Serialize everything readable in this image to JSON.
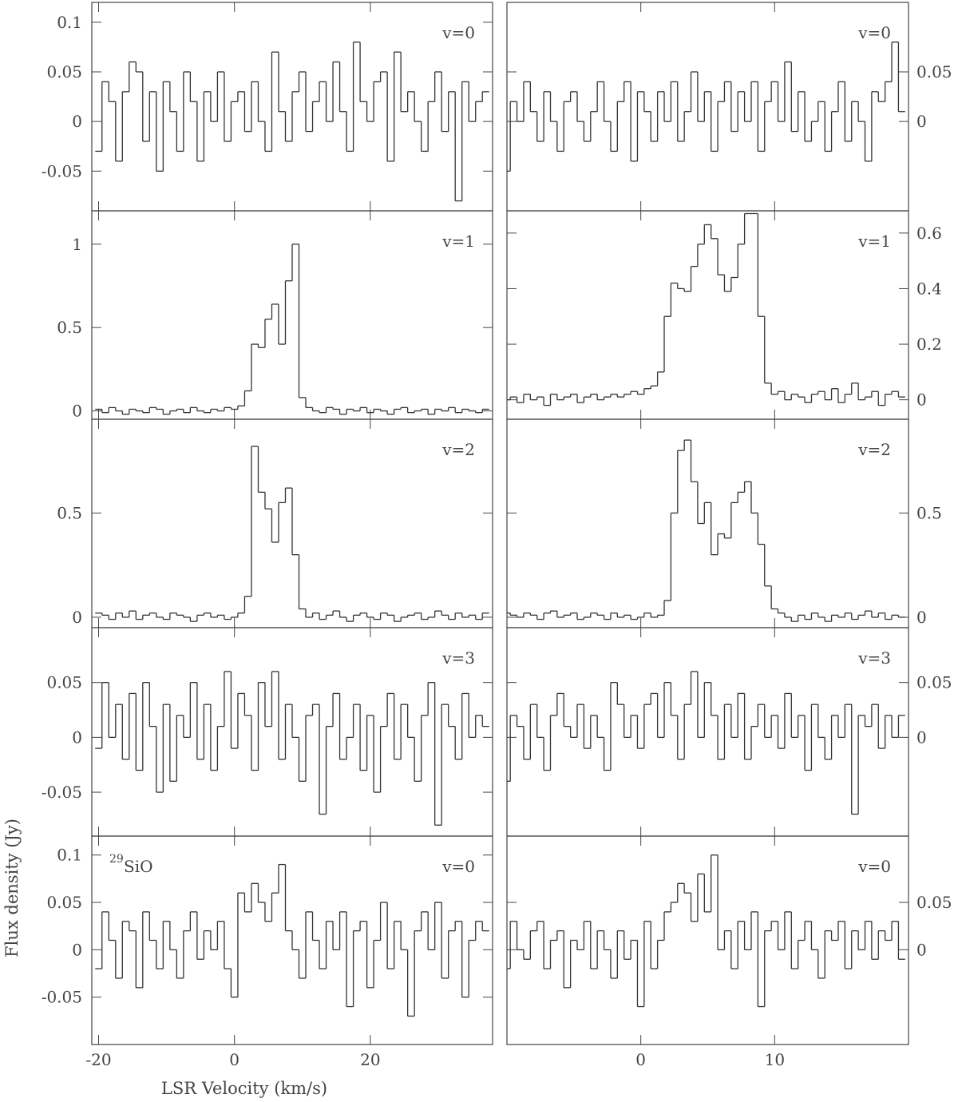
{
  "chart_data": [
    {
      "type": "line",
      "annotation": "v=0",
      "color": "#333333",
      "xlim": [
        -21,
        38
      ],
      "ylim": [
        -0.09,
        0.12
      ],
      "yticks": [
        -0.05,
        0,
        0.05,
        0.1
      ],
      "x": [
        -20,
        -19,
        -18,
        -17,
        -16,
        -15,
        -14,
        -13,
        -12,
        -11,
        -10,
        -9,
        -8,
        -7,
        -6,
        -5,
        -4,
        -3,
        -2,
        -1,
        0,
        1,
        2,
        3,
        4,
        5,
        6,
        7,
        8,
        9,
        10,
        11,
        12,
        13,
        14,
        15,
        16,
        17,
        18,
        19,
        20,
        21,
        22,
        23,
        24,
        25,
        26,
        27,
        28,
        29,
        30,
        31,
        32,
        33,
        34,
        35,
        36,
        37
      ],
      "values": [
        -0.03,
        0.04,
        0.02,
        -0.04,
        0.03,
        0.06,
        0.05,
        -0.02,
        0.03,
        -0.05,
        0.04,
        0.01,
        -0.03,
        0.05,
        0.02,
        -0.04,
        0.03,
        0.0,
        0.05,
        -0.02,
        0.02,
        0.03,
        -0.01,
        0.04,
        0.0,
        -0.03,
        0.07,
        0.01,
        -0.02,
        0.03,
        0.05,
        -0.01,
        0.02,
        0.04,
        0.0,
        0.06,
        0.01,
        -0.03,
        0.08,
        0.02,
        0.0,
        0.04,
        0.05,
        -0.04,
        0.07,
        0.01,
        0.03,
        0.0,
        -0.03,
        0.02,
        0.05,
        -0.01,
        0.03,
        -0.08,
        0.04,
        0.0,
        0.02,
        0.03
      ]
    },
    {
      "type": "line",
      "annotation": "v=0",
      "color": "#333333",
      "xlim": [
        -10,
        20
      ],
      "ylim": [
        -0.09,
        0.12
      ],
      "yticks": [
        0,
        0.05
      ],
      "x": [
        -10,
        -9.5,
        -9,
        -8.5,
        -8,
        -7.5,
        -7,
        -6.5,
        -6,
        -5.5,
        -5,
        -4.5,
        -4,
        -3.5,
        -3,
        -2.5,
        -2,
        -1.5,
        -1,
        -0.5,
        0,
        0.5,
        1,
        1.5,
        2,
        2.5,
        3,
        3.5,
        4,
        4.5,
        5,
        5.5,
        6,
        6.5,
        7,
        7.5,
        8,
        8.5,
        9,
        9.5,
        10,
        10.5,
        11,
        11.5,
        12,
        12.5,
        13,
        13.5,
        14,
        14.5,
        15,
        15.5,
        16,
        16.5,
        17,
        17.5,
        18,
        18.5,
        19,
        19.5
      ],
      "values": [
        -0.05,
        0.02,
        0.0,
        0.04,
        0.01,
        -0.02,
        0.03,
        0.0,
        -0.03,
        0.02,
        0.03,
        0.0,
        -0.02,
        0.01,
        0.04,
        0.0,
        -0.03,
        0.02,
        0.04,
        -0.04,
        0.03,
        0.01,
        -0.02,
        0.03,
        0.0,
        0.04,
        -0.02,
        0.01,
        0.05,
        0.0,
        0.03,
        -0.03,
        0.02,
        0.04,
        -0.01,
        0.03,
        0.0,
        0.04,
        -0.03,
        0.02,
        0.04,
        0.0,
        0.06,
        -0.01,
        0.03,
        -0.02,
        0.0,
        0.02,
        -0.03,
        0.01,
        0.04,
        -0.02,
        0.02,
        0.0,
        -0.04,
        0.03,
        0.02,
        0.04,
        0.08,
        0.01
      ]
    },
    {
      "type": "line",
      "annotation": "v=1",
      "color": "#333333",
      "xlim": [
        -21,
        38
      ],
      "ylim": [
        -0.05,
        1.2
      ],
      "yticks": [
        0,
        0.5,
        1
      ],
      "x": [
        -20,
        -19,
        -18,
        -17,
        -16,
        -15,
        -14,
        -13,
        -12,
        -11,
        -10,
        -9,
        -8,
        -7,
        -6,
        -5,
        -4,
        -3,
        -2,
        -1,
        0,
        1,
        2,
        3,
        4,
        5,
        6,
        7,
        8,
        9,
        10,
        11,
        12,
        13,
        14,
        15,
        16,
        17,
        18,
        19,
        20,
        21,
        22,
        23,
        24,
        25,
        26,
        27,
        28,
        29,
        30,
        31,
        32,
        33,
        34,
        35,
        36,
        37
      ],
      "values": [
        0.01,
        -0.01,
        0.02,
        0.0,
        -0.02,
        0.01,
        0.0,
        -0.01,
        0.02,
        0.01,
        -0.02,
        0.0,
        0.01,
        -0.01,
        0.02,
        0.0,
        -0.01,
        0.01,
        0.0,
        0.02,
        0.01,
        0.03,
        0.12,
        0.4,
        0.38,
        0.55,
        0.64,
        0.4,
        0.78,
        1.0,
        0.08,
        0.02,
        0.0,
        -0.01,
        0.02,
        0.01,
        -0.02,
        0.01,
        0.0,
        0.02,
        -0.01,
        0.01,
        0.0,
        -0.02,
        0.01,
        0.02,
        -0.01,
        0.0,
        0.01,
        -0.02,
        0.01,
        0.0,
        0.02,
        -0.01,
        0.01,
        0.0,
        -0.01,
        0.01
      ]
    },
    {
      "type": "line",
      "annotation": "v=1",
      "color": "#333333",
      "xlim": [
        -10,
        20
      ],
      "ylim": [
        -0.07,
        0.68
      ],
      "yticks": [
        0,
        0.2,
        0.4,
        0.6
      ],
      "x": [
        -10,
        -9.5,
        -9,
        -8.5,
        -8,
        -7.5,
        -7,
        -6.5,
        -6,
        -5.5,
        -5,
        -4.5,
        -4,
        -3.5,
        -3,
        -2.5,
        -2,
        -1.5,
        -1,
        -0.5,
        0,
        0.5,
        1,
        1.5,
        2,
        2.5,
        3,
        3.5,
        4,
        4.5,
        5,
        5.5,
        6,
        6.5,
        7,
        7.5,
        8,
        8.5,
        9,
        9.5,
        10,
        10.5,
        11,
        11.5,
        12,
        12.5,
        13,
        13.5,
        14,
        14.5,
        15,
        15.5,
        16,
        16.5,
        17,
        17.5,
        18,
        18.5,
        19,
        19.5
      ],
      "values": [
        0.0,
        0.01,
        -0.01,
        0.02,
        0.0,
        0.01,
        -0.02,
        0.02,
        0.0,
        0.01,
        0.02,
        -0.01,
        0.01,
        0.02,
        0.0,
        0.01,
        0.02,
        0.01,
        0.02,
        0.03,
        0.02,
        0.04,
        0.05,
        0.1,
        0.3,
        0.42,
        0.4,
        0.39,
        0.48,
        0.56,
        0.63,
        0.58,
        0.45,
        0.39,
        0.44,
        0.56,
        0.67,
        0.67,
        0.3,
        0.06,
        0.02,
        0.03,
        0.0,
        0.02,
        0.01,
        -0.01,
        0.02,
        0.03,
        0.0,
        0.04,
        -0.01,
        0.02,
        0.06,
        0.0,
        0.01,
        0.03,
        -0.02,
        0.02,
        0.03,
        0.01
      ]
    },
    {
      "type": "line",
      "annotation": "v=2",
      "color": "#333333",
      "xlim": [
        -21,
        38
      ],
      "ylim": [
        -0.05,
        0.95
      ],
      "yticks": [
        0,
        0.5
      ],
      "x": [
        -20,
        -19,
        -18,
        -17,
        -16,
        -15,
        -14,
        -13,
        -12,
        -11,
        -10,
        -9,
        -8,
        -7,
        -6,
        -5,
        -4,
        -3,
        -2,
        -1,
        0,
        1,
        2,
        3,
        4,
        5,
        6,
        7,
        8,
        9,
        10,
        11,
        12,
        13,
        14,
        15,
        16,
        17,
        18,
        19,
        20,
        21,
        22,
        23,
        24,
        25,
        26,
        27,
        28,
        29,
        30,
        31,
        32,
        33,
        34,
        35,
        36,
        37
      ],
      "values": [
        0.02,
        0.01,
        -0.01,
        0.02,
        0.0,
        0.03,
        -0.01,
        0.01,
        0.02,
        0.0,
        -0.01,
        0.02,
        0.01,
        0.0,
        -0.02,
        0.01,
        0.02,
        0.0,
        0.01,
        -0.01,
        0.0,
        0.02,
        0.1,
        0.82,
        0.6,
        0.52,
        0.36,
        0.55,
        0.62,
        0.3,
        0.04,
        0.0,
        0.02,
        -0.01,
        0.01,
        0.03,
        0.0,
        -0.02,
        0.01,
        0.02,
        0.0,
        -0.01,
        0.02,
        0.01,
        -0.02,
        0.0,
        0.01,
        0.02,
        -0.01,
        0.0,
        0.03,
        0.01,
        -0.01,
        0.02,
        0.0,
        0.01,
        -0.01,
        0.02
      ]
    },
    {
      "type": "line",
      "annotation": "v=2",
      "color": "#333333",
      "xlim": [
        -10,
        20
      ],
      "ylim": [
        -0.05,
        0.95
      ],
      "yticks": [
        0,
        0.5
      ],
      "x": [
        -10,
        -9.5,
        -9,
        -8.5,
        -8,
        -7.5,
        -7,
        -6.5,
        -6,
        -5.5,
        -5,
        -4.5,
        -4,
        -3.5,
        -3,
        -2.5,
        -2,
        -1.5,
        -1,
        -0.5,
        0,
        0.5,
        1,
        1.5,
        2,
        2.5,
        3,
        3.5,
        4,
        4.5,
        5,
        5.5,
        6,
        6.5,
        7,
        7.5,
        8,
        8.5,
        9,
        9.5,
        10,
        10.5,
        11,
        11.5,
        12,
        12.5,
        13,
        13.5,
        14,
        14.5,
        15,
        15.5,
        16,
        16.5,
        17,
        17.5,
        18,
        18.5,
        19,
        19.5
      ],
      "values": [
        0.02,
        0.01,
        0.0,
        0.02,
        0.01,
        -0.01,
        0.02,
        0.03,
        0.0,
        0.01,
        0.02,
        -0.01,
        0.0,
        0.02,
        0.01,
        -0.01,
        0.02,
        0.0,
        0.01,
        -0.01,
        0.0,
        0.02,
        0.0,
        0.01,
        0.08,
        0.5,
        0.8,
        0.85,
        0.65,
        0.45,
        0.55,
        0.3,
        0.4,
        0.38,
        0.55,
        0.6,
        0.65,
        0.5,
        0.35,
        0.15,
        0.04,
        0.02,
        0.0,
        -0.02,
        0.01,
        -0.01,
        0.02,
        0.0,
        -0.02,
        0.01,
        0.0,
        0.02,
        -0.01,
        0.01,
        0.03,
        0.0,
        0.02,
        -0.01,
        0.01,
        0.0
      ]
    },
    {
      "type": "line",
      "annotation": "v=3",
      "color": "#333333",
      "xlim": [
        -21,
        38
      ],
      "ylim": [
        -0.09,
        0.1
      ],
      "yticks": [
        -0.05,
        0,
        0.05
      ],
      "x": [
        -20,
        -19,
        -18,
        -17,
        -16,
        -15,
        -14,
        -13,
        -12,
        -11,
        -10,
        -9,
        -8,
        -7,
        -6,
        -5,
        -4,
        -3,
        -2,
        -1,
        0,
        1,
        2,
        3,
        4,
        5,
        6,
        7,
        8,
        9,
        10,
        11,
        12,
        13,
        14,
        15,
        16,
        17,
        18,
        19,
        20,
        21,
        22,
        23,
        24,
        25,
        26,
        27,
        28,
        29,
        30,
        31,
        32,
        33,
        34,
        35,
        36,
        37
      ],
      "values": [
        -0.01,
        0.05,
        0.0,
        0.03,
        -0.02,
        0.04,
        -0.03,
        0.05,
        0.01,
        -0.05,
        0.03,
        -0.04,
        0.02,
        0.0,
        0.05,
        -0.02,
        0.03,
        -0.03,
        0.01,
        0.06,
        -0.01,
        0.04,
        0.02,
        -0.03,
        0.05,
        0.01,
        0.06,
        -0.02,
        0.03,
        0.0,
        -0.04,
        0.02,
        0.03,
        -0.07,
        0.01,
        0.04,
        -0.02,
        0.0,
        0.03,
        -0.03,
        0.02,
        -0.05,
        0.01,
        0.04,
        -0.02,
        0.03,
        0.0,
        -0.04,
        0.02,
        0.05,
        -0.08,
        0.03,
        0.01,
        -0.02,
        0.04,
        0.0,
        0.02,
        0.01
      ]
    },
    {
      "type": "line",
      "annotation": "v=3",
      "color": "#333333",
      "xlim": [
        -10,
        20
      ],
      "ylim": [
        -0.09,
        0.1
      ],
      "yticks": [
        0,
        0.05
      ],
      "x": [
        -10,
        -9.5,
        -9,
        -8.5,
        -8,
        -7.5,
        -7,
        -6.5,
        -6,
        -5.5,
        -5,
        -4.5,
        -4,
        -3.5,
        -3,
        -2.5,
        -2,
        -1.5,
        -1,
        -0.5,
        0,
        0.5,
        1,
        1.5,
        2,
        2.5,
        3,
        3.5,
        4,
        4.5,
        5,
        5.5,
        6,
        6.5,
        7,
        7.5,
        8,
        8.5,
        9,
        9.5,
        10,
        10.5,
        11,
        11.5,
        12,
        12.5,
        13,
        13.5,
        14,
        14.5,
        15,
        15.5,
        16,
        16.5,
        17,
        17.5,
        18,
        18.5,
        19,
        19.5
      ],
      "values": [
        -0.04,
        0.02,
        0.01,
        -0.02,
        0.03,
        0.0,
        -0.03,
        0.02,
        0.04,
        0.01,
        0.0,
        0.03,
        -0.01,
        0.02,
        0.0,
        -0.03,
        0.05,
        0.03,
        0.0,
        0.02,
        -0.01,
        0.03,
        0.04,
        0.0,
        0.05,
        0.02,
        -0.02,
        0.03,
        0.06,
        0.0,
        0.05,
        0.02,
        -0.02,
        0.03,
        0.0,
        0.04,
        -0.02,
        0.01,
        0.03,
        0.0,
        0.02,
        -0.01,
        0.04,
        0.0,
        0.02,
        -0.03,
        0.03,
        0.0,
        -0.02,
        0.02,
        0.0,
        0.03,
        -0.07,
        0.02,
        0.01,
        0.03,
        -0.01,
        0.02,
        0.0,
        0.02
      ]
    },
    {
      "type": "line",
      "annotation": "v=0",
      "label_sup": "29",
      "label": "SiO",
      "xlabel": "LSR Velocity (km/s)",
      "ylabel": "Flux density (Jy)",
      "color": "#333333",
      "xlim": [
        -21,
        38
      ],
      "ylim": [
        -0.1,
        0.12
      ],
      "yticks": [
        -0.05,
        0,
        0.05,
        0.1
      ],
      "xticks": [
        -20,
        0,
        20
      ],
      "x": [
        -20,
        -19,
        -18,
        -17,
        -16,
        -15,
        -14,
        -13,
        -12,
        -11,
        -10,
        -9,
        -8,
        -7,
        -6,
        -5,
        -4,
        -3,
        -2,
        -1,
        0,
        1,
        2,
        3,
        4,
        5,
        6,
        7,
        8,
        9,
        10,
        11,
        12,
        13,
        14,
        15,
        16,
        17,
        18,
        19,
        20,
        21,
        22,
        23,
        24,
        25,
        26,
        27,
        28,
        29,
        30,
        31,
        32,
        33,
        34,
        35,
        36,
        37
      ],
      "values": [
        -0.02,
        0.04,
        0.01,
        -0.03,
        0.03,
        0.02,
        -0.04,
        0.04,
        0.01,
        -0.02,
        0.03,
        0.0,
        -0.03,
        0.02,
        0.04,
        -0.01,
        0.02,
        0.0,
        0.03,
        -0.02,
        -0.05,
        0.06,
        0.04,
        0.07,
        0.05,
        0.03,
        0.06,
        0.09,
        0.02,
        0.0,
        -0.03,
        0.04,
        0.01,
        -0.02,
        0.03,
        0.0,
        0.04,
        -0.06,
        0.02,
        0.03,
        -0.04,
        0.01,
        0.05,
        -0.02,
        0.03,
        0.0,
        -0.07,
        0.02,
        0.04,
        0.0,
        0.05,
        -0.03,
        0.02,
        0.03,
        -0.05,
        0.01,
        0.03,
        0.02
      ]
    },
    {
      "type": "line",
      "annotation": "v=0",
      "color": "#333333",
      "xlim": [
        -10,
        20
      ],
      "ylim": [
        -0.1,
        0.12
      ],
      "yticks": [
        0,
        0.05
      ],
      "xticks": [
        0,
        10
      ],
      "x": [
        -10,
        -9.5,
        -9,
        -8.5,
        -8,
        -7.5,
        -7,
        -6.5,
        -6,
        -5.5,
        -5,
        -4.5,
        -4,
        -3.5,
        -3,
        -2.5,
        -2,
        -1.5,
        -1,
        -0.5,
        0,
        0.5,
        1,
        1.5,
        2,
        2.5,
        3,
        3.5,
        4,
        4.5,
        5,
        5.5,
        6,
        6.5,
        7,
        7.5,
        8,
        8.5,
        9,
        9.5,
        10,
        10.5,
        11,
        11.5,
        12,
        12.5,
        13,
        13.5,
        14,
        14.5,
        15,
        15.5,
        16,
        16.5,
        17,
        17.5,
        18,
        18.5,
        19,
        19.5
      ],
      "values": [
        -0.02,
        0.03,
        0.0,
        -0.01,
        0.02,
        0.03,
        -0.02,
        0.01,
        0.02,
        -0.04,
        0.01,
        0.0,
        0.03,
        -0.02,
        0.02,
        0.0,
        -0.03,
        0.02,
        -0.01,
        0.01,
        -0.06,
        0.03,
        -0.02,
        0.01,
        0.04,
        0.05,
        0.07,
        0.06,
        0.03,
        0.08,
        0.04,
        0.1,
        0.0,
        0.02,
        -0.02,
        0.03,
        0.0,
        0.04,
        -0.06,
        0.02,
        0.03,
        0.0,
        0.04,
        -0.02,
        0.01,
        0.03,
        0.0,
        -0.03,
        0.02,
        0.01,
        0.03,
        -0.02,
        0.02,
        0.0,
        0.03,
        -0.01,
        0.02,
        0.01,
        0.03,
        -0.01
      ]
    }
  ]
}
